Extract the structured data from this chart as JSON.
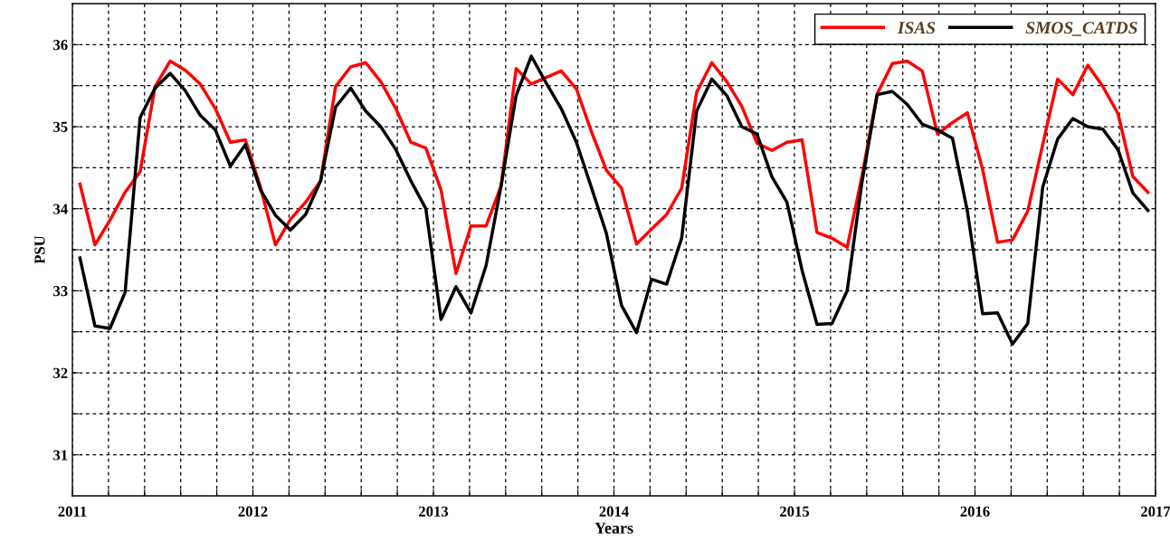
{
  "chart_data": {
    "type": "line",
    "xlabel": "Years",
    "ylabel": "PSU",
    "x": [
      2011.042,
      2011.125,
      2011.208,
      2011.292,
      2011.375,
      2011.458,
      2011.542,
      2011.625,
      2011.708,
      2011.792,
      2011.875,
      2011.958,
      2012.042,
      2012.125,
      2012.208,
      2012.292,
      2012.375,
      2012.458,
      2012.542,
      2012.625,
      2012.708,
      2012.792,
      2012.875,
      2012.958,
      2013.042,
      2013.125,
      2013.208,
      2013.292,
      2013.375,
      2013.458,
      2013.542,
      2013.625,
      2013.708,
      2013.792,
      2013.875,
      2013.958,
      2014.042,
      2014.125,
      2014.208,
      2014.292,
      2014.375,
      2014.458,
      2014.542,
      2014.625,
      2014.708,
      2014.792,
      2014.875,
      2014.958,
      2015.042,
      2015.125,
      2015.208,
      2015.292,
      2015.375,
      2015.458,
      2015.542,
      2015.625,
      2015.708,
      2015.792,
      2015.875,
      2015.958,
      2016.042,
      2016.125,
      2016.208,
      2016.292,
      2016.375,
      2016.458,
      2016.542,
      2016.625,
      2016.708,
      2016.792,
      2016.875,
      2016.958
    ],
    "series": [
      {
        "name": "ISAS",
        "color": "#ff0000",
        "values": [
          34.3,
          33.56,
          33.86,
          34.2,
          34.45,
          35.49,
          35.8,
          35.69,
          35.52,
          35.22,
          34.81,
          34.84,
          34.26,
          33.56,
          33.87,
          34.08,
          34.34,
          35.49,
          35.73,
          35.78,
          35.55,
          35.22,
          34.81,
          34.74,
          34.23,
          33.21,
          33.79,
          33.79,
          34.28,
          35.71,
          35.52,
          35.6,
          35.68,
          35.46,
          34.94,
          34.47,
          34.25,
          33.57,
          33.75,
          33.93,
          34.25,
          35.42,
          35.78,
          35.55,
          35.25,
          34.8,
          34.71,
          34.81,
          34.84,
          33.71,
          33.64,
          33.53,
          34.41,
          35.4,
          35.77,
          35.8,
          35.68,
          34.91,
          35.05,
          35.17,
          34.48,
          33.59,
          33.62,
          33.97,
          34.78,
          35.58,
          35.39,
          35.75,
          35.49,
          35.16,
          34.39,
          34.2
        ]
      },
      {
        "name": "SMOS_CATDS",
        "color": "#000000",
        "values": [
          33.4,
          32.57,
          32.54,
          32.98,
          35.11,
          35.47,
          35.65,
          35.44,
          35.14,
          34.96,
          34.52,
          34.78,
          34.23,
          33.92,
          33.74,
          33.93,
          34.34,
          35.24,
          35.47,
          35.19,
          35.0,
          34.72,
          34.34,
          34.0,
          32.65,
          33.05,
          32.73,
          33.31,
          34.28,
          35.38,
          35.86,
          35.53,
          35.22,
          34.81,
          34.26,
          33.7,
          32.82,
          32.49,
          33.14,
          33.08,
          33.64,
          35.19,
          35.58,
          35.38,
          35.0,
          34.91,
          34.39,
          34.08,
          33.25,
          32.59,
          32.6,
          33.0,
          34.34,
          35.39,
          35.43,
          35.27,
          35.03,
          34.96,
          34.86,
          33.97,
          32.72,
          32.73,
          32.35,
          32.6,
          34.26,
          34.85,
          35.1,
          35.0,
          34.97,
          34.72,
          34.19,
          33.98
        ]
      }
    ],
    "xlim": [
      2011,
      2017
    ],
    "xticks": [
      2011,
      {
        "value": 2011.2,
        "label": null
      },
      {
        "value": 2011.4,
        "label": null
      },
      {
        "value": 2011.6,
        "label": null
      },
      {
        "value": 2011.8,
        "label": null
      },
      2012,
      {
        "value": 2012.2,
        "label": null
      },
      {
        "value": 2012.4,
        "label": null
      },
      {
        "value": 2012.6,
        "label": null
      },
      {
        "value": 2012.8,
        "label": null
      },
      2013,
      {
        "value": 2013.2,
        "label": null
      },
      {
        "value": 2013.4,
        "label": null
      },
      {
        "value": 2013.6,
        "label": null
      },
      {
        "value": 2013.8,
        "label": null
      },
      2014,
      {
        "value": 2014.2,
        "label": null
      },
      {
        "value": 2014.4,
        "label": null
      },
      {
        "value": 2014.6,
        "label": null
      },
      {
        "value": 2014.8,
        "label": null
      },
      2015,
      {
        "value": 2015.2,
        "label": null
      },
      {
        "value": 2015.4,
        "label": null
      },
      {
        "value": 2015.6,
        "label": null
      },
      {
        "value": 2015.8,
        "label": null
      },
      2016,
      {
        "value": 2016.2,
        "label": null
      },
      {
        "value": 2016.4,
        "label": null
      },
      {
        "value": 2016.6,
        "label": null
      },
      {
        "value": 2016.8,
        "label": null
      },
      2017
    ],
    "ylim": [
      30.5,
      36.5
    ],
    "yticks": [
      31,
      {
        "value": 31.5,
        "label": null
      },
      32,
      {
        "value": 32.5,
        "label": null
      },
      33,
      {
        "value": 33.5,
        "label": null
      },
      34,
      {
        "value": 34.5,
        "label": null
      },
      35,
      {
        "value": 35.5,
        "label": null
      },
      36
    ],
    "grid": true,
    "legend": "top right",
    "line_style": "solid",
    "marker": "none"
  }
}
